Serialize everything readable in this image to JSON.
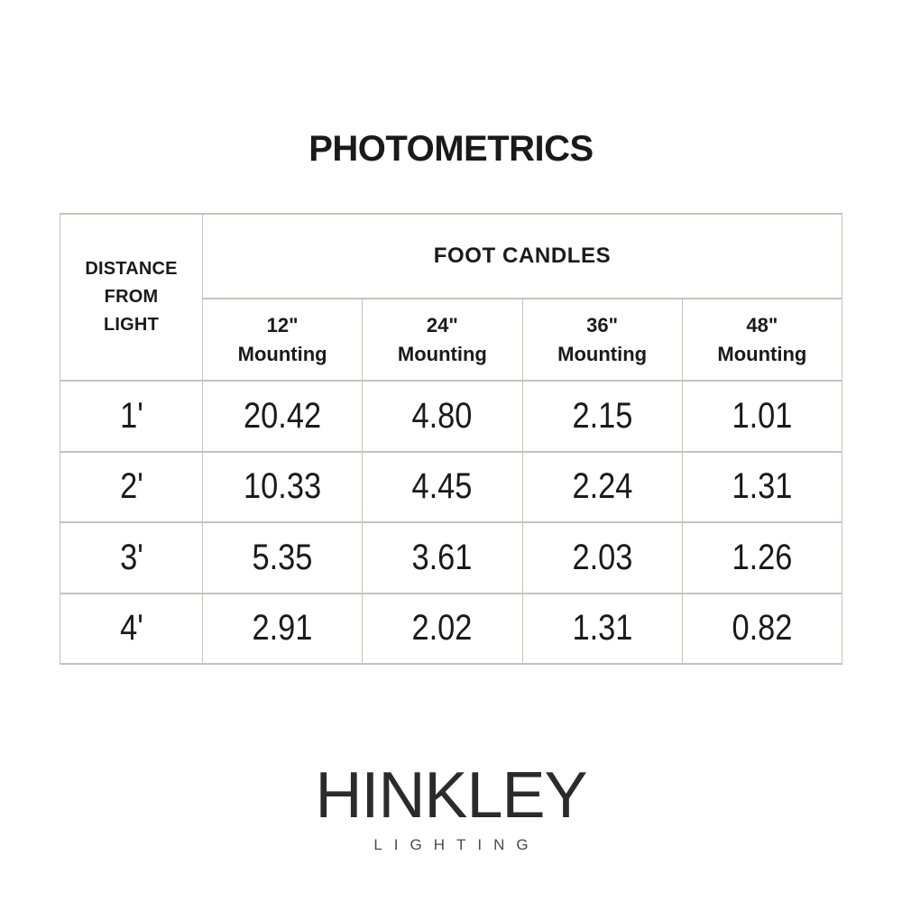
{
  "title": "PHOTOMETRICS",
  "table": {
    "distance_header_lines": [
      "DISTANCE",
      "FROM",
      "LIGHT"
    ],
    "group_header": "FOOT CANDLES",
    "columns": [
      {
        "size": "12\"",
        "label": "Mounting"
      },
      {
        "size": "24\"",
        "label": "Mounting"
      },
      {
        "size": "36\"",
        "label": "Mounting"
      },
      {
        "size": "48\"",
        "label": "Mounting"
      }
    ],
    "rows": [
      {
        "distance": "1'",
        "values": [
          "20.42",
          "4.80",
          "2.15",
          "1.01"
        ]
      },
      {
        "distance": "2'",
        "values": [
          "10.33",
          "4.45",
          "2.24",
          "1.31"
        ]
      },
      {
        "distance": "3'",
        "values": [
          "5.35",
          "3.61",
          "2.03",
          "1.26"
        ]
      },
      {
        "distance": "4'",
        "values": [
          "2.91",
          "2.02",
          "1.31",
          "0.82"
        ]
      }
    ]
  },
  "logo": {
    "brand": "HINKLEY",
    "subtitle": "LIGHTING"
  },
  "colors": {
    "background": "#ffffff",
    "border": "#c9c1b8",
    "text": "#1a1a1a",
    "brand": "#2b2b2b",
    "subtitle": "#4a4a4a"
  },
  "chart_data": {
    "type": "table",
    "title": "PHOTOMETRICS",
    "row_header": "DISTANCE FROM LIGHT",
    "column_group_header": "FOOT CANDLES",
    "columns": [
      "12\" Mounting",
      "24\" Mounting",
      "36\" Mounting",
      "48\" Mounting"
    ],
    "rows": [
      {
        "distance_from_light": "1'",
        "foot_candles": [
          20.42,
          4.8,
          2.15,
          1.01
        ]
      },
      {
        "distance_from_light": "2'",
        "foot_candles": [
          10.33,
          4.45,
          2.24,
          1.31
        ]
      },
      {
        "distance_from_light": "3'",
        "foot_candles": [
          5.35,
          3.61,
          2.03,
          1.26
        ]
      },
      {
        "distance_from_light": "4'",
        "foot_candles": [
          2.91,
          2.02,
          1.31,
          0.82
        ]
      }
    ],
    "layout_hints": {
      "grid": true,
      "header_rows": 2,
      "values_unit": "foot candles"
    }
  }
}
